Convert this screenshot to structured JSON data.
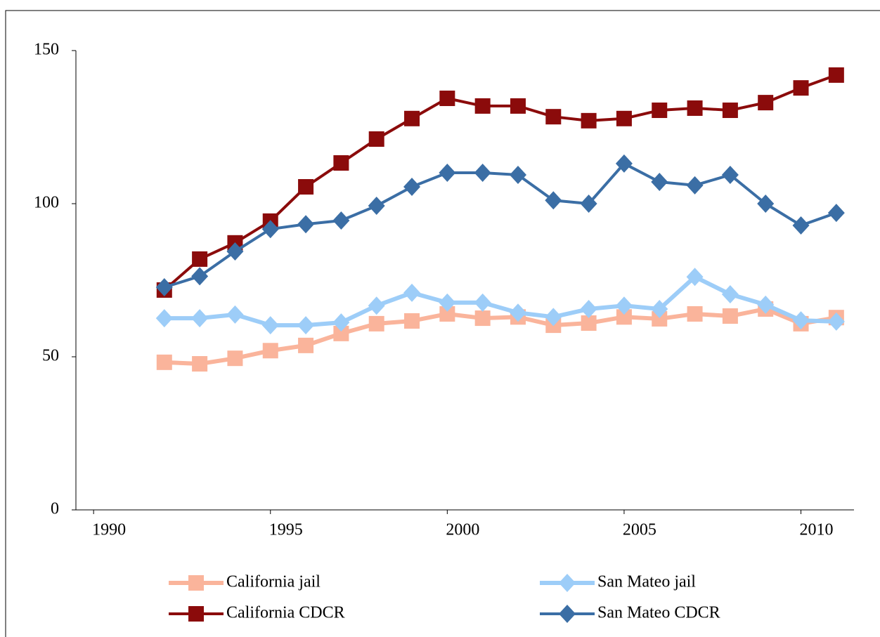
{
  "chart_data": {
    "type": "line",
    "x": [
      1992,
      1993,
      1994,
      1995,
      1996,
      1997,
      1998,
      1999,
      2000,
      2001,
      2002,
      2003,
      2004,
      2005,
      2006,
      2007,
      2008,
      2009,
      2010,
      2011
    ],
    "xlim": [
      1989.5,
      2011.5
    ],
    "xticks": [
      1990,
      1995,
      2000,
      2005,
      2010
    ],
    "ylim": [
      0,
      150
    ],
    "yticks": [
      0,
      50,
      100,
      150
    ],
    "series": [
      {
        "name": "California jail",
        "color": "#fab49b",
        "marker": "square",
        "values": [
          48.2,
          47.7,
          49.5,
          52,
          53.7,
          57.6,
          60.8,
          61.7,
          64,
          62.6,
          63,
          60.3,
          61,
          63,
          62.4,
          64,
          63.3,
          65.6,
          60.8,
          62.8
        ]
      },
      {
        "name": "San Mateo jail",
        "color": "#9dcdf8",
        "marker": "diamond",
        "values": [
          62.6,
          62.6,
          63.8,
          60.3,
          60.3,
          61.2,
          66.7,
          70.9,
          67.7,
          67.7,
          64.4,
          63,
          65.6,
          66.7,
          65.6,
          76.1,
          70.4,
          67,
          61.9,
          61.5
        ]
      },
      {
        "name": "California CDCR",
        "color": "#8b0b0b",
        "marker": "square",
        "values": [
          71.8,
          81.9,
          87.2,
          94.3,
          105.5,
          113.3,
          121.1,
          127.8,
          134.4,
          131.9,
          131.9,
          128.4,
          127.1,
          127.8,
          130.5,
          131.2,
          130.5,
          133,
          137.8,
          142
        ]
      },
      {
        "name": "San Mateo CDCR",
        "color": "#3b6ea5",
        "marker": "diamond",
        "values": [
          72.7,
          76.3,
          84.4,
          91.7,
          93.3,
          94.5,
          99.3,
          105.5,
          110.1,
          110.1,
          109.4,
          101.1,
          100,
          113.1,
          107.1,
          106,
          109.4,
          100,
          92.9,
          97
        ]
      }
    ]
  }
}
